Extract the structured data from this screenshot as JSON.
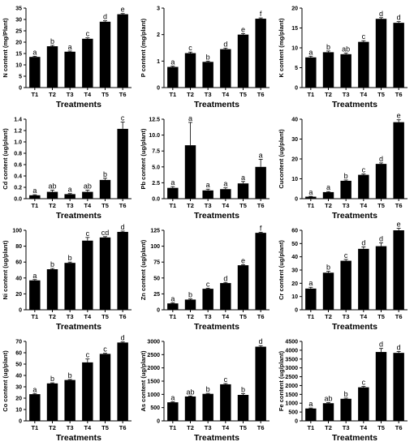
{
  "chart_data": [
    {
      "type": "bar",
      "title": "",
      "xlabel": "Treatments",
      "ylabel": "N content (mg/Plant)",
      "categories": [
        "T1",
        "T2",
        "T3",
        "T4",
        "T5",
        "T6"
      ],
      "values": [
        13.5,
        18.2,
        15.8,
        21.5,
        29.0,
        32.3
      ],
      "errors": [
        0.3,
        0.4,
        0.3,
        0.4,
        0.4,
        0.3
      ],
      "letters": [
        "a",
        "b",
        "a",
        "c",
        "d",
        "e"
      ],
      "ylim": [
        0,
        35
      ],
      "yticks": [
        0,
        5,
        10,
        15,
        20,
        25,
        30,
        35
      ]
    },
    {
      "type": "bar",
      "title": "",
      "xlabel": "Treatments",
      "ylabel": "P content (mg/plant)",
      "categories": [
        "T1",
        "T2",
        "T3",
        "T4",
        "T5",
        "T6"
      ],
      "values": [
        0.78,
        1.3,
        0.97,
        1.45,
        2.0,
        2.6
      ],
      "errors": [
        0.03,
        0.04,
        0.03,
        0.04,
        0.04,
        0.03
      ],
      "letters": [
        "a",
        "c",
        "b",
        "d",
        "e",
        "f"
      ],
      "ylim": [
        0,
        3
      ],
      "yticks": [
        0,
        1,
        2,
        3
      ]
    },
    {
      "type": "bar",
      "title": "",
      "xlabel": "Treatments",
      "ylabel": "K content (mg/plant)",
      "categories": [
        "T1",
        "T2",
        "T3",
        "T4",
        "T5",
        "T6"
      ],
      "values": [
        7.6,
        8.9,
        8.4,
        11.5,
        17.3,
        16.3
      ],
      "errors": [
        0.3,
        0.3,
        0.3,
        0.3,
        0.3,
        0.3
      ],
      "letters": [
        "a",
        "b",
        "ab",
        "c",
        "d",
        "d"
      ],
      "ylim": [
        0,
        20
      ],
      "yticks": [
        0,
        5,
        10,
        15,
        20
      ]
    },
    {
      "type": "bar",
      "title": "",
      "xlabel": "Treatments",
      "ylabel": "Cd content (ug/plant)",
      "categories": [
        "T1",
        "T2",
        "T3",
        "T4",
        "T5",
        "T6"
      ],
      "values": [
        0.06,
        0.12,
        0.08,
        0.12,
        0.33,
        1.23
      ],
      "errors": [
        0.01,
        0.03,
        0.01,
        0.03,
        0.03,
        0.12
      ],
      "letters": [
        "a",
        "ab",
        "a",
        "ab",
        "b",
        "c"
      ],
      "ylim": [
        0,
        1.4
      ],
      "yticks": [
        0,
        0.2,
        0.4,
        0.6,
        0.8,
        1.0,
        1.2,
        1.4
      ],
      "ytick_labels": [
        "0.0",
        "0.2",
        "0.4",
        "0.6",
        "0.8",
        "1.0",
        "1.2",
        "1.4"
      ]
    },
    {
      "type": "bar",
      "title": "",
      "xlabel": "Treatments",
      "ylabel": "Pb content (ug/plant)",
      "categories": [
        "T1",
        "T2",
        "T3",
        "T4",
        "T5",
        "T6"
      ],
      "values": [
        1.7,
        8.4,
        1.3,
        1.5,
        2.4,
        5.0
      ],
      "errors": [
        0.2,
        3.6,
        0.2,
        0.2,
        0.3,
        1.2
      ],
      "letters": [
        "a",
        "a",
        "a",
        "a",
        "a",
        "a"
      ],
      "ylim": [
        0,
        12.5
      ],
      "yticks": [
        0,
        2.5,
        5,
        7.5,
        10,
        12.5
      ],
      "ytick_labels": [
        "0.0",
        "2.5",
        "5.0",
        "7.5",
        "10.0",
        "12.5"
      ]
    },
    {
      "type": "bar",
      "title": "",
      "xlabel": "Treatments",
      "ylabel": "Cucontent (ug/plant)",
      "categories": [
        "T1",
        "T2",
        "T3",
        "T4",
        "T5",
        "T6"
      ],
      "values": [
        1.0,
        3.3,
        9.0,
        12.0,
        17.5,
        38.5
      ],
      "errors": [
        0.2,
        0.3,
        0.4,
        0.4,
        0.5,
        1.2
      ],
      "letters": [
        "a",
        "a",
        "b",
        "c",
        "d",
        "e"
      ],
      "ylim": [
        0,
        40
      ],
      "yticks": [
        0,
        10,
        20,
        30,
        40
      ]
    },
    {
      "type": "bar",
      "title": "",
      "xlabel": "Treatments",
      "ylabel": "Ni content (ug/plant)",
      "categories": [
        "T1",
        "T2",
        "T3",
        "T4",
        "T5",
        "T6"
      ],
      "values": [
        37,
        51,
        59,
        87,
        91,
        98
      ],
      "errors": [
        1,
        1,
        1,
        4,
        1,
        1
      ],
      "letters": [
        "a",
        "b",
        "b",
        "c",
        "cd",
        "d"
      ],
      "ylim": [
        0,
        100
      ],
      "yticks": [
        0,
        20,
        40,
        60,
        80,
        100
      ]
    },
    {
      "type": "bar",
      "title": "",
      "xlabel": "Treatments",
      "ylabel": "Zn content (ug/plant)",
      "categories": [
        "T1",
        "T2",
        "T3",
        "T4",
        "T5",
        "T6"
      ],
      "values": [
        10,
        16,
        33,
        42,
        70,
        121
      ],
      "errors": [
        1,
        1,
        1,
        1,
        1,
        1
      ],
      "letters": [
        "a",
        "b",
        "c",
        "d",
        "e",
        "f"
      ],
      "ylim": [
        0,
        125
      ],
      "yticks": [
        0,
        25,
        50,
        75,
        100,
        125
      ]
    },
    {
      "type": "bar",
      "title": "",
      "xlabel": "Treatments",
      "ylabel": "Cr content (ug/plant)",
      "categories": [
        "T1",
        "T2",
        "T3",
        "T4",
        "T5",
        "T6"
      ],
      "values": [
        16,
        28,
        37,
        46,
        48,
        60
      ],
      "errors": [
        1,
        1,
        1,
        1.5,
        2.5,
        1.5
      ],
      "letters": [
        "a",
        "b",
        "c",
        "d",
        "d",
        "e"
      ],
      "ylim": [
        0,
        60
      ],
      "yticks": [
        0,
        10,
        20,
        30,
        40,
        50,
        60
      ]
    },
    {
      "type": "bar",
      "title": "",
      "xlabel": "Treatments",
      "ylabel": "Co content (ug/plant)",
      "categories": [
        "T1",
        "T2",
        "T3",
        "T4",
        "T5",
        "T6"
      ],
      "values": [
        23.5,
        33,
        36,
        51.5,
        59,
        69
      ],
      "errors": [
        0.6,
        0.5,
        0.5,
        3,
        0.5,
        0.5
      ],
      "letters": [
        "a",
        "b",
        "b",
        "c",
        "c",
        "d"
      ],
      "ylim": [
        0,
        70
      ],
      "yticks": [
        0,
        10,
        20,
        30,
        40,
        50,
        60,
        70
      ]
    },
    {
      "type": "bar",
      "title": "",
      "xlabel": "Treatments",
      "ylabel": "As content (ug/plant)",
      "categories": [
        "T1",
        "T2",
        "T3",
        "T4",
        "T5",
        "T6"
      ],
      "values": [
        700,
        920,
        1020,
        1380,
        980,
        2800
      ],
      "errors": [
        20,
        20,
        20,
        30,
        50,
        40
      ],
      "letters": [
        "a",
        "ab",
        "b",
        "c",
        "b",
        "d"
      ],
      "ylim": [
        0,
        3000
      ],
      "yticks": [
        0,
        500,
        1000,
        1500,
        2000,
        2500,
        3000
      ]
    },
    {
      "type": "bar",
      "title": "",
      "xlabel": "Treatments",
      "ylabel": "Fe content (ug/plant)",
      "categories": [
        "T1",
        "T2",
        "T3",
        "T4",
        "T5",
        "T6"
      ],
      "values": [
        700,
        1000,
        1250,
        1900,
        3900,
        3850
      ],
      "errors": [
        30,
        30,
        40,
        50,
        200,
        80
      ],
      "letters": [
        "a",
        "ab",
        "b",
        "c",
        "d",
        "d"
      ],
      "ylim": [
        0,
        4500
      ],
      "yticks": [
        0,
        500,
        1000,
        1500,
        2000,
        2500,
        3000,
        3500,
        4000,
        4500
      ]
    }
  ]
}
